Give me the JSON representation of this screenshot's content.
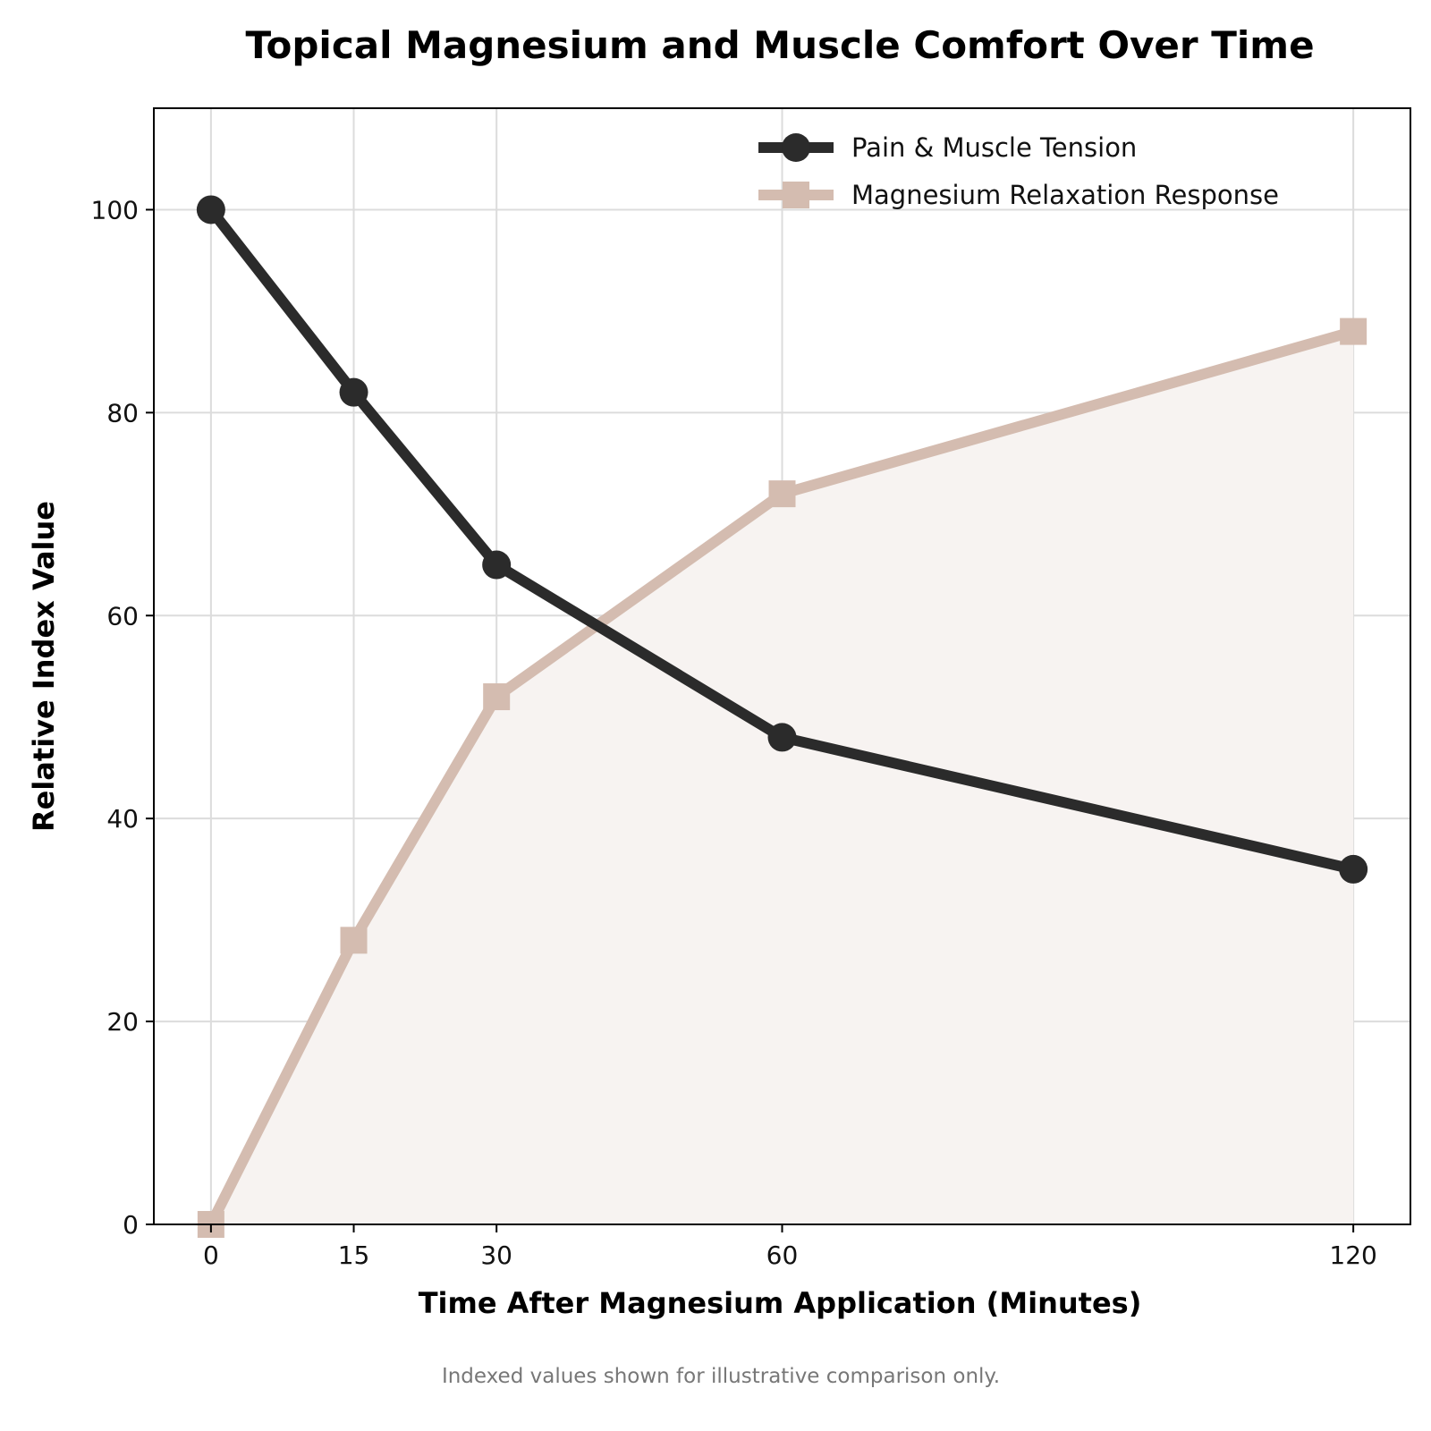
{
  "chart_data": {
    "type": "line",
    "title": "Topical Magnesium and Muscle Comfort Over Time",
    "xlabel": "Time After Magnesium Application (Minutes)",
    "ylabel": "Relative Index Value",
    "x": [
      0,
      15,
      30,
      60,
      120
    ],
    "xticks": [
      0,
      15,
      30,
      60,
      120
    ],
    "yticks": [
      0,
      20,
      40,
      60,
      80,
      100
    ],
    "xlim": [
      -6,
      126
    ],
    "ylim": [
      0,
      110
    ],
    "grid": true,
    "legend_position": "top-right",
    "series": [
      {
        "name": "Pain & Muscle Tension",
        "values": [
          100,
          82,
          65,
          48,
          35
        ],
        "color": "#2b2b2b",
        "marker": "circle",
        "fill": false
      },
      {
        "name": "Magnesium Relaxation Response",
        "values": [
          0,
          28,
          52,
          72,
          88
        ],
        "color": "#d4bcb0",
        "marker": "square",
        "fill": true,
        "fill_color": "#f7f3f1"
      }
    ],
    "footnote": "Indexed values shown for illustrative comparison only."
  }
}
